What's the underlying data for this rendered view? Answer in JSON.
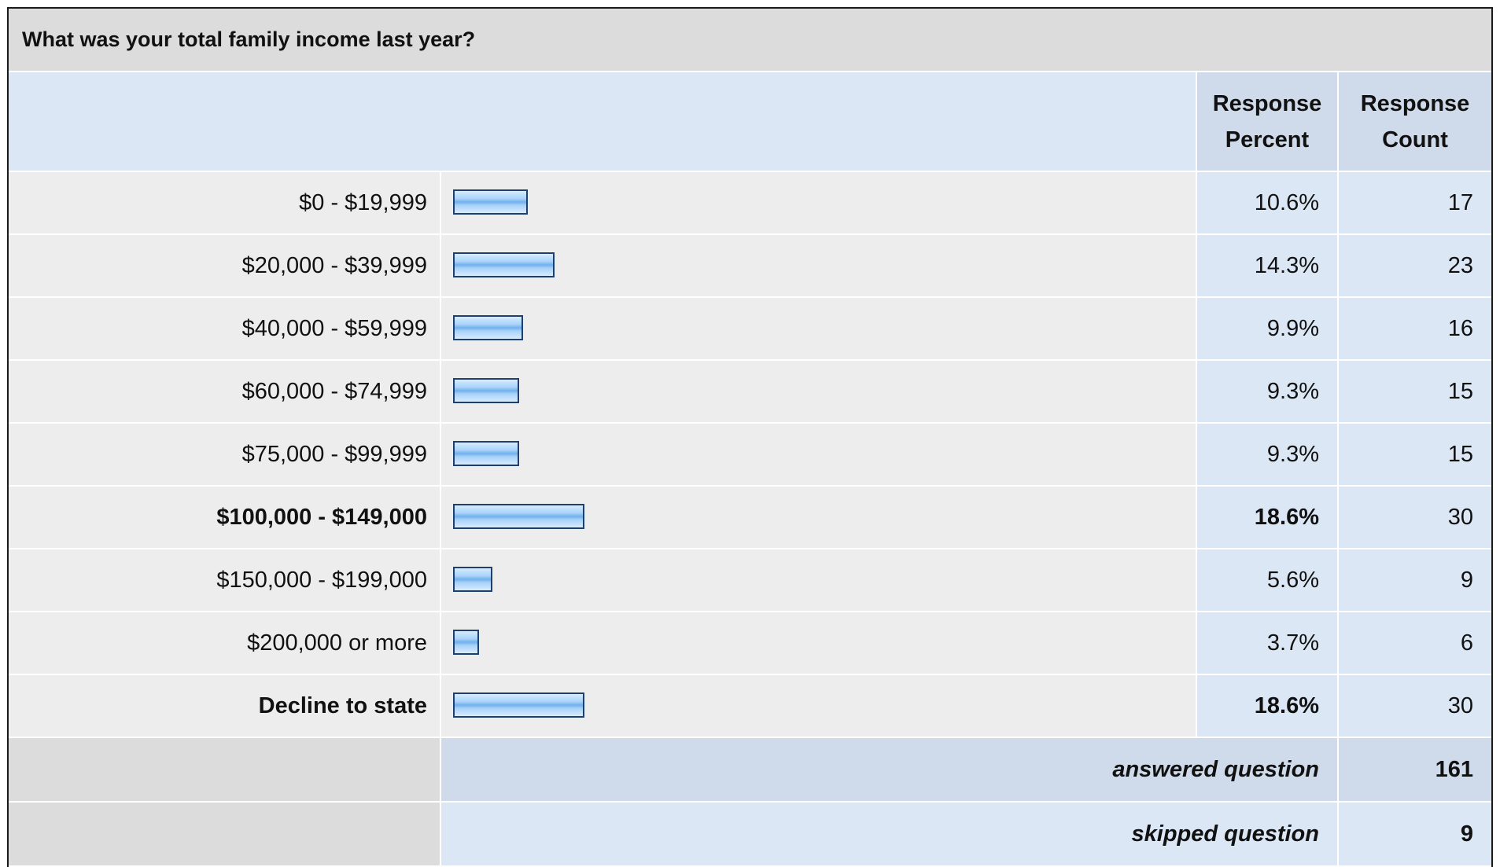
{
  "question": {
    "title": "What was your total family income last year?"
  },
  "header": {
    "percent_label": "Response Percent",
    "count_label": "Response Count"
  },
  "chart_data": {
    "type": "bar",
    "orientation": "horizontal",
    "categories": [
      "$0 - $19,999",
      "$20,000 - $39,999",
      "$40,000 - $59,999",
      "$60,000 - $74,999",
      "$75,000 - $99,999",
      "$100,000 - $149,000",
      "$150,000 - $199,000",
      "$200,000 or more",
      "Decline to state"
    ],
    "percent_labels": [
      "10.6%",
      "14.3%",
      "9.9%",
      "9.3%",
      "9.3%",
      "18.6%",
      "5.6%",
      "3.7%",
      "18.6%"
    ],
    "values": [
      10.6,
      14.3,
      9.9,
      9.3,
      9.3,
      18.6,
      5.6,
      3.7,
      18.6
    ],
    "counts": [
      "17",
      "23",
      "16",
      "15",
      "15",
      "30",
      "9",
      "6",
      "30"
    ],
    "highlighted": [
      false,
      false,
      false,
      false,
      false,
      true,
      false,
      false,
      true
    ],
    "xlim": [
      0,
      100
    ],
    "bar_color": "#7fb8f0"
  },
  "summary": {
    "answered_label": "answered question",
    "answered_value": "161",
    "skipped_label": "skipped question",
    "skipped_value": "9"
  }
}
